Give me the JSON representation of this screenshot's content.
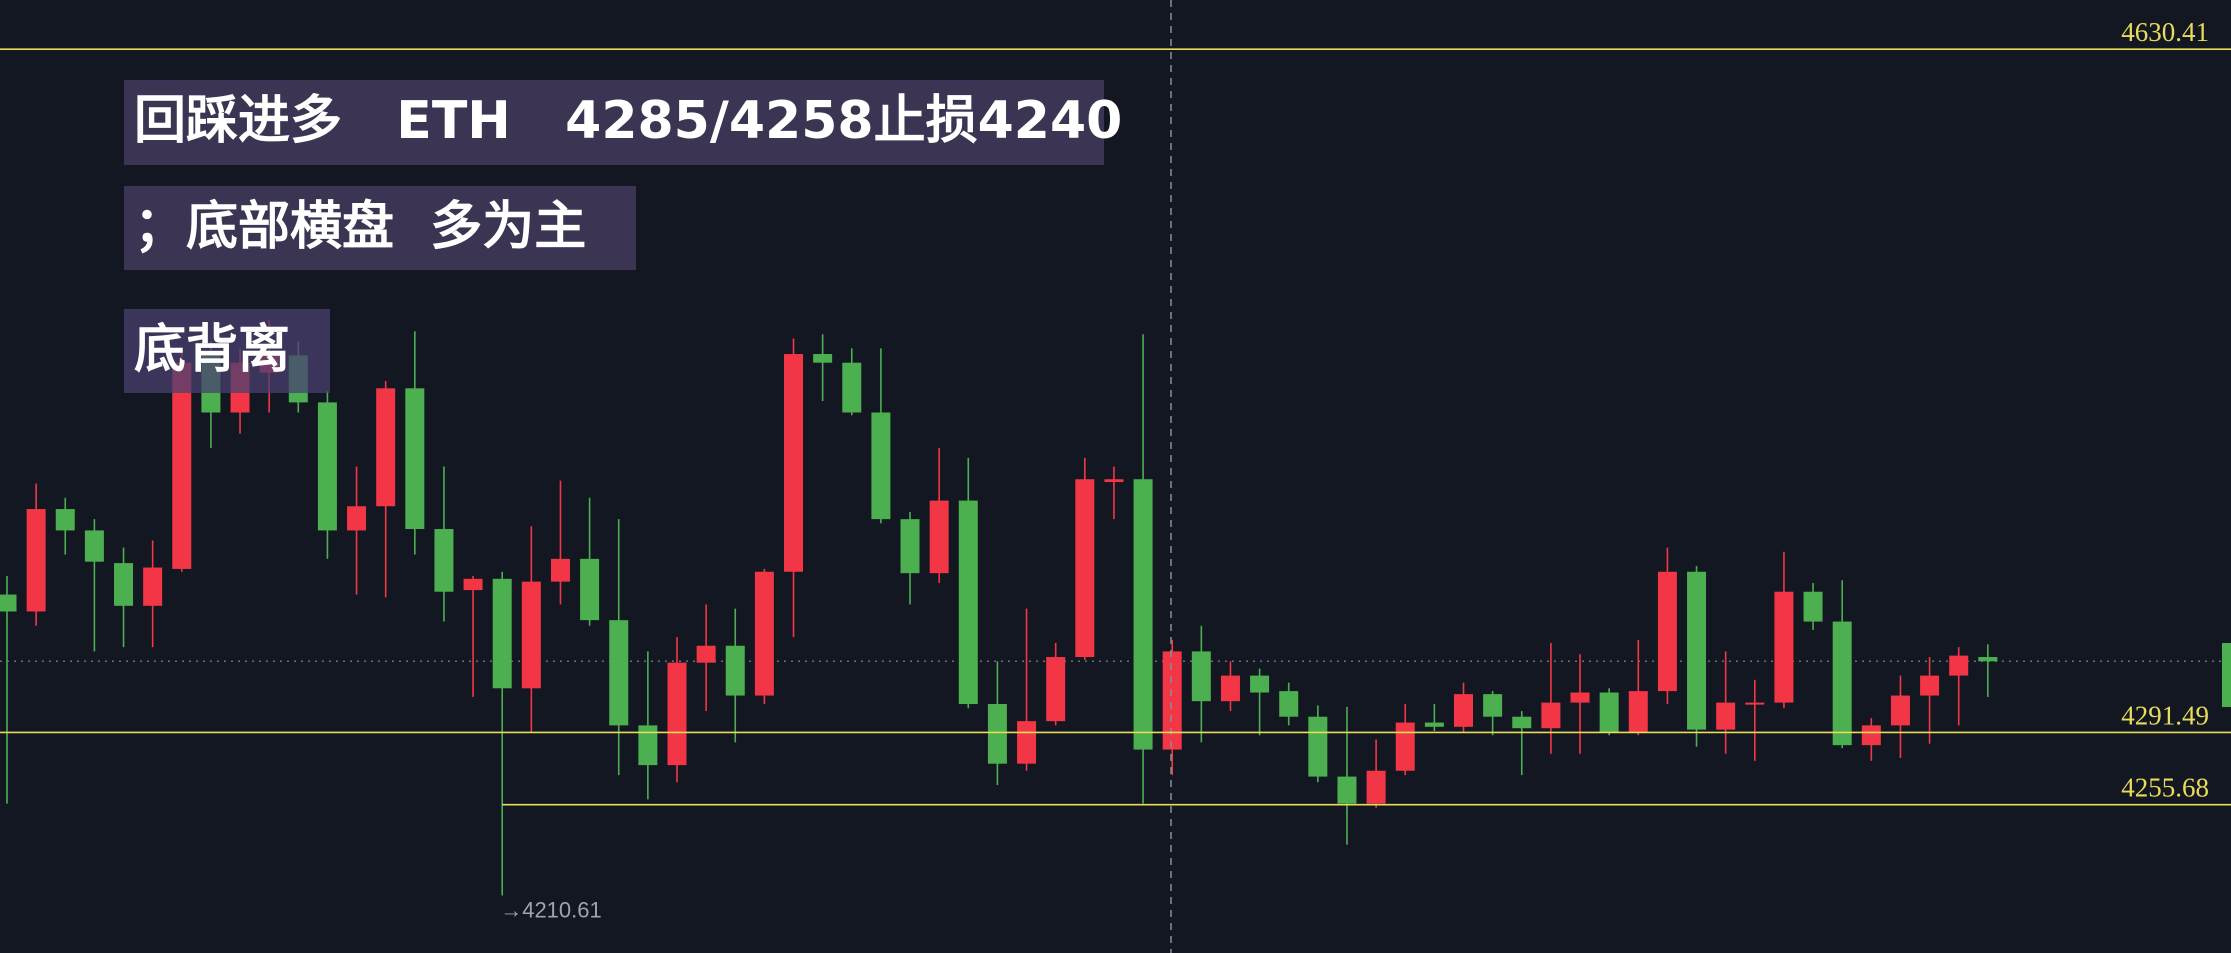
{
  "chart_data": {
    "type": "candlestick",
    "annotations": [
      "回踩进多   ETH   4285/4258止损4240",
      "；底部横盘  多为主",
      "底背离"
    ],
    "up_color": "#f23645",
    "down_color": "#4caf50",
    "level_color": "#e8dc5a",
    "ylim": [
      4182.1,
      4654.8
    ],
    "levels": [
      4630.41,
      4291.49,
      4255.68
    ],
    "low_label": "→4210.61",
    "open": [
      4359.9,
      4351.5,
      4402.3,
      4391.7,
      4375.5,
      4354.3,
      4372.6,
      4478.5,
      4450.2,
      4470.0,
      4478.5,
      4455.2,
      4391.7,
      4403.7,
      4462.2,
      4392.4,
      4362.1,
      4367.7,
      4313.4,
      4366.3,
      4377.6,
      4347.2,
      4295.0,
      4275.3,
      4326.1,
      4334.5,
      4309.8,
      4371.2,
      4479.2,
      4474.9,
      4450.2,
      4397.3,
      4370.5,
      4406.5,
      4305.6,
      4276.0,
      4297.1,
      4328.9,
      4415.7,
      4417.1,
      4283.0,
      4331.7,
      4307.0,
      4319.7,
      4312.0,
      4299.3,
      4269.6,
      4256.2,
      4272.5,
      4296.4,
      4294.3,
      4310.5,
      4299.3,
      4293.6,
      4306.3,
      4311.3,
      4291.5,
      4312.0,
      4371.2,
      4292.9,
      4305.6,
      4306.3,
      4361.3,
      4346.5,
      4285.2,
      4295.0,
      4309.8,
      4319.7,
      4328.9
    ],
    "high": [
      4369.1,
      4415.0,
      4407.9,
      4397.3,
      4383.2,
      4386.7,
      4482.0,
      4485.5,
      4482.0,
      4496.1,
      4485.5,
      4460.8,
      4423.4,
      4465.8,
      4490.5,
      4423.4,
      4369.1,
      4371.2,
      4393.8,
      4416.4,
      4407.9,
      4397.3,
      4331.7,
      4338.8,
      4355.0,
      4352.9,
      4372.6,
      4486.9,
      4489.0,
      4482.0,
      4482.0,
      4400.9,
      4432.6,
      4427.7,
      4326.8,
      4352.9,
      4335.9,
      4427.7,
      4423.4,
      4489.0,
      4337.4,
      4344.4,
      4326.8,
      4323.2,
      4316.2,
      4304.9,
      4304.2,
      4288.0,
      4305.6,
      4305.6,
      4316.2,
      4312.0,
      4302.1,
      4335.9,
      4330.3,
      4313.4,
      4337.4,
      4383.2,
      4374.0,
      4331.7,
      4317.6,
      4381.1,
      4365.6,
      4367.0,
      4298.6,
      4319.7,
      4328.9,
      4333.8,
      4335.2
    ],
    "low": [
      4256.2,
      4344.4,
      4379.7,
      4331.7,
      4333.8,
      4333.8,
      4371.2,
      4432.6,
      4439.7,
      4450.2,
      4450.2,
      4377.6,
      4359.9,
      4358.5,
      4379.7,
      4346.5,
      4309.1,
      4210.61,
      4291.5,
      4355.0,
      4344.4,
      4270.3,
      4258.3,
      4266.8,
      4302.1,
      4286.6,
      4305.6,
      4338.8,
      4455.9,
      4448.8,
      4395.2,
      4355.0,
      4365.6,
      4303.5,
      4265.4,
      4272.5,
      4295.0,
      4327.5,
      4397.3,
      4256.2,
      4270.3,
      4286.6,
      4302.1,
      4290.1,
      4295.0,
      4266.8,
      4235.8,
      4254.1,
      4270.3,
      4292.2,
      4291.5,
      4290.1,
      4270.3,
      4280.9,
      4280.9,
      4290.1,
      4290.1,
      4305.6,
      4284.4,
      4280.9,
      4277.4,
      4303.5,
      4342.3,
      4283.7,
      4277.4,
      4278.8,
      4285.9,
      4295.0,
      4309.1
    ],
    "close": [
      4351.5,
      4402.3,
      4391.7,
      4376.2,
      4354.3,
      4373.3,
      4474.9,
      4450.2,
      4474.9,
      4478.5,
      4455.2,
      4391.7,
      4403.7,
      4462.2,
      4392.4,
      4361.3,
      4367.7,
      4313.4,
      4366.3,
      4377.6,
      4347.2,
      4295.0,
      4275.3,
      4326.1,
      4334.5,
      4309.8,
      4371.2,
      4479.2,
      4474.9,
      4450.2,
      4397.3,
      4370.5,
      4406.5,
      4305.6,
      4276.0,
      4297.1,
      4328.9,
      4417.1,
      4417.1,
      4283.0,
      4331.7,
      4307.0,
      4319.7,
      4311.3,
      4299.3,
      4269.6,
      4256.2,
      4272.5,
      4296.4,
      4294.3,
      4310.5,
      4299.3,
      4293.6,
      4306.3,
      4311.3,
      4291.5,
      4312.0,
      4371.2,
      4292.9,
      4306.3,
      4306.3,
      4361.3,
      4346.5,
      4285.2,
      4295.0,
      4309.8,
      4319.7,
      4329.6,
      4326.8
    ]
  }
}
